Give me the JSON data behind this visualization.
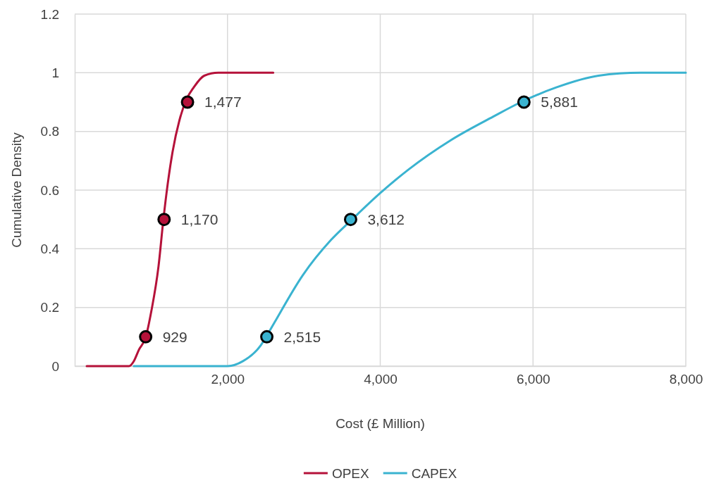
{
  "chart_data": {
    "type": "line",
    "xlabel": "Cost (£ Million)",
    "ylabel": "Cumulative Density",
    "xlim": [
      0,
      8000
    ],
    "xticks": [
      {
        "value": 2000,
        "label": "2,000"
      },
      {
        "value": 4000,
        "label": "4,000"
      },
      {
        "value": 6000,
        "label": "6,000"
      },
      {
        "value": 8000,
        "label": "8,000"
      }
    ],
    "ylim": [
      0,
      1.2
    ],
    "yticks": [
      0,
      0.2,
      0.4,
      0.6,
      0.8,
      1,
      1.2
    ],
    "grid": true,
    "legend": "bottom",
    "line_style": "solid",
    "series": [
      {
        "name": "OPEX",
        "color": "#b5123a",
        "marker": "none",
        "x": [
          157,
          710,
          774,
          839,
          931,
          1005,
          1097,
          1161,
          1217,
          1281,
          1373,
          1465,
          1558,
          1696,
          1880,
          2599
        ],
        "values": [
          0,
          0,
          0.017,
          0.055,
          0.1,
          0.19,
          0.34,
          0.5,
          0.62,
          0.73,
          0.84,
          0.91,
          0.95,
          0.99,
          1,
          1
        ]
      },
      {
        "name": "CAPEX",
        "color": "#3ab3d0",
        "marker": "none",
        "x": [
          774,
          2000,
          2203,
          2433,
          2507,
          2618,
          2986,
          3355,
          3631,
          4000,
          4369,
          4922,
          5475,
          5843,
          6304,
          6857,
          7410,
          8000
        ],
        "values": [
          0,
          0,
          0.017,
          0.07,
          0.1,
          0.15,
          0.31,
          0.43,
          0.5,
          0.59,
          0.67,
          0.77,
          0.85,
          0.9,
          0.95,
          0.99,
          1,
          1
        ]
      },
      {
        "type": "scatter",
        "color": "#b5123a",
        "marker": "circle",
        "x": [
          929,
          1170,
          1477
        ],
        "values": [
          0.1,
          0.5,
          0.9
        ]
      },
      {
        "type": "scatter",
        "color": "#3ab3d0",
        "marker": "circle",
        "x": [
          2515,
          3612,
          5881
        ],
        "values": [
          0.1,
          0.5,
          0.9
        ]
      }
    ],
    "annotations": [
      {
        "text": "929",
        "x": 929,
        "y": 0.1
      },
      {
        "text": "1,170",
        "x": 1170,
        "y": 0.5
      },
      {
        "text": "1,477",
        "x": 1477,
        "y": 0.9
      },
      {
        "text": "2,515",
        "x": 2515,
        "y": 0.1
      },
      {
        "text": "3,612",
        "x": 3612,
        "y": 0.5
      },
      {
        "text": "5,881",
        "x": 5881,
        "y": 0.9
      }
    ]
  }
}
